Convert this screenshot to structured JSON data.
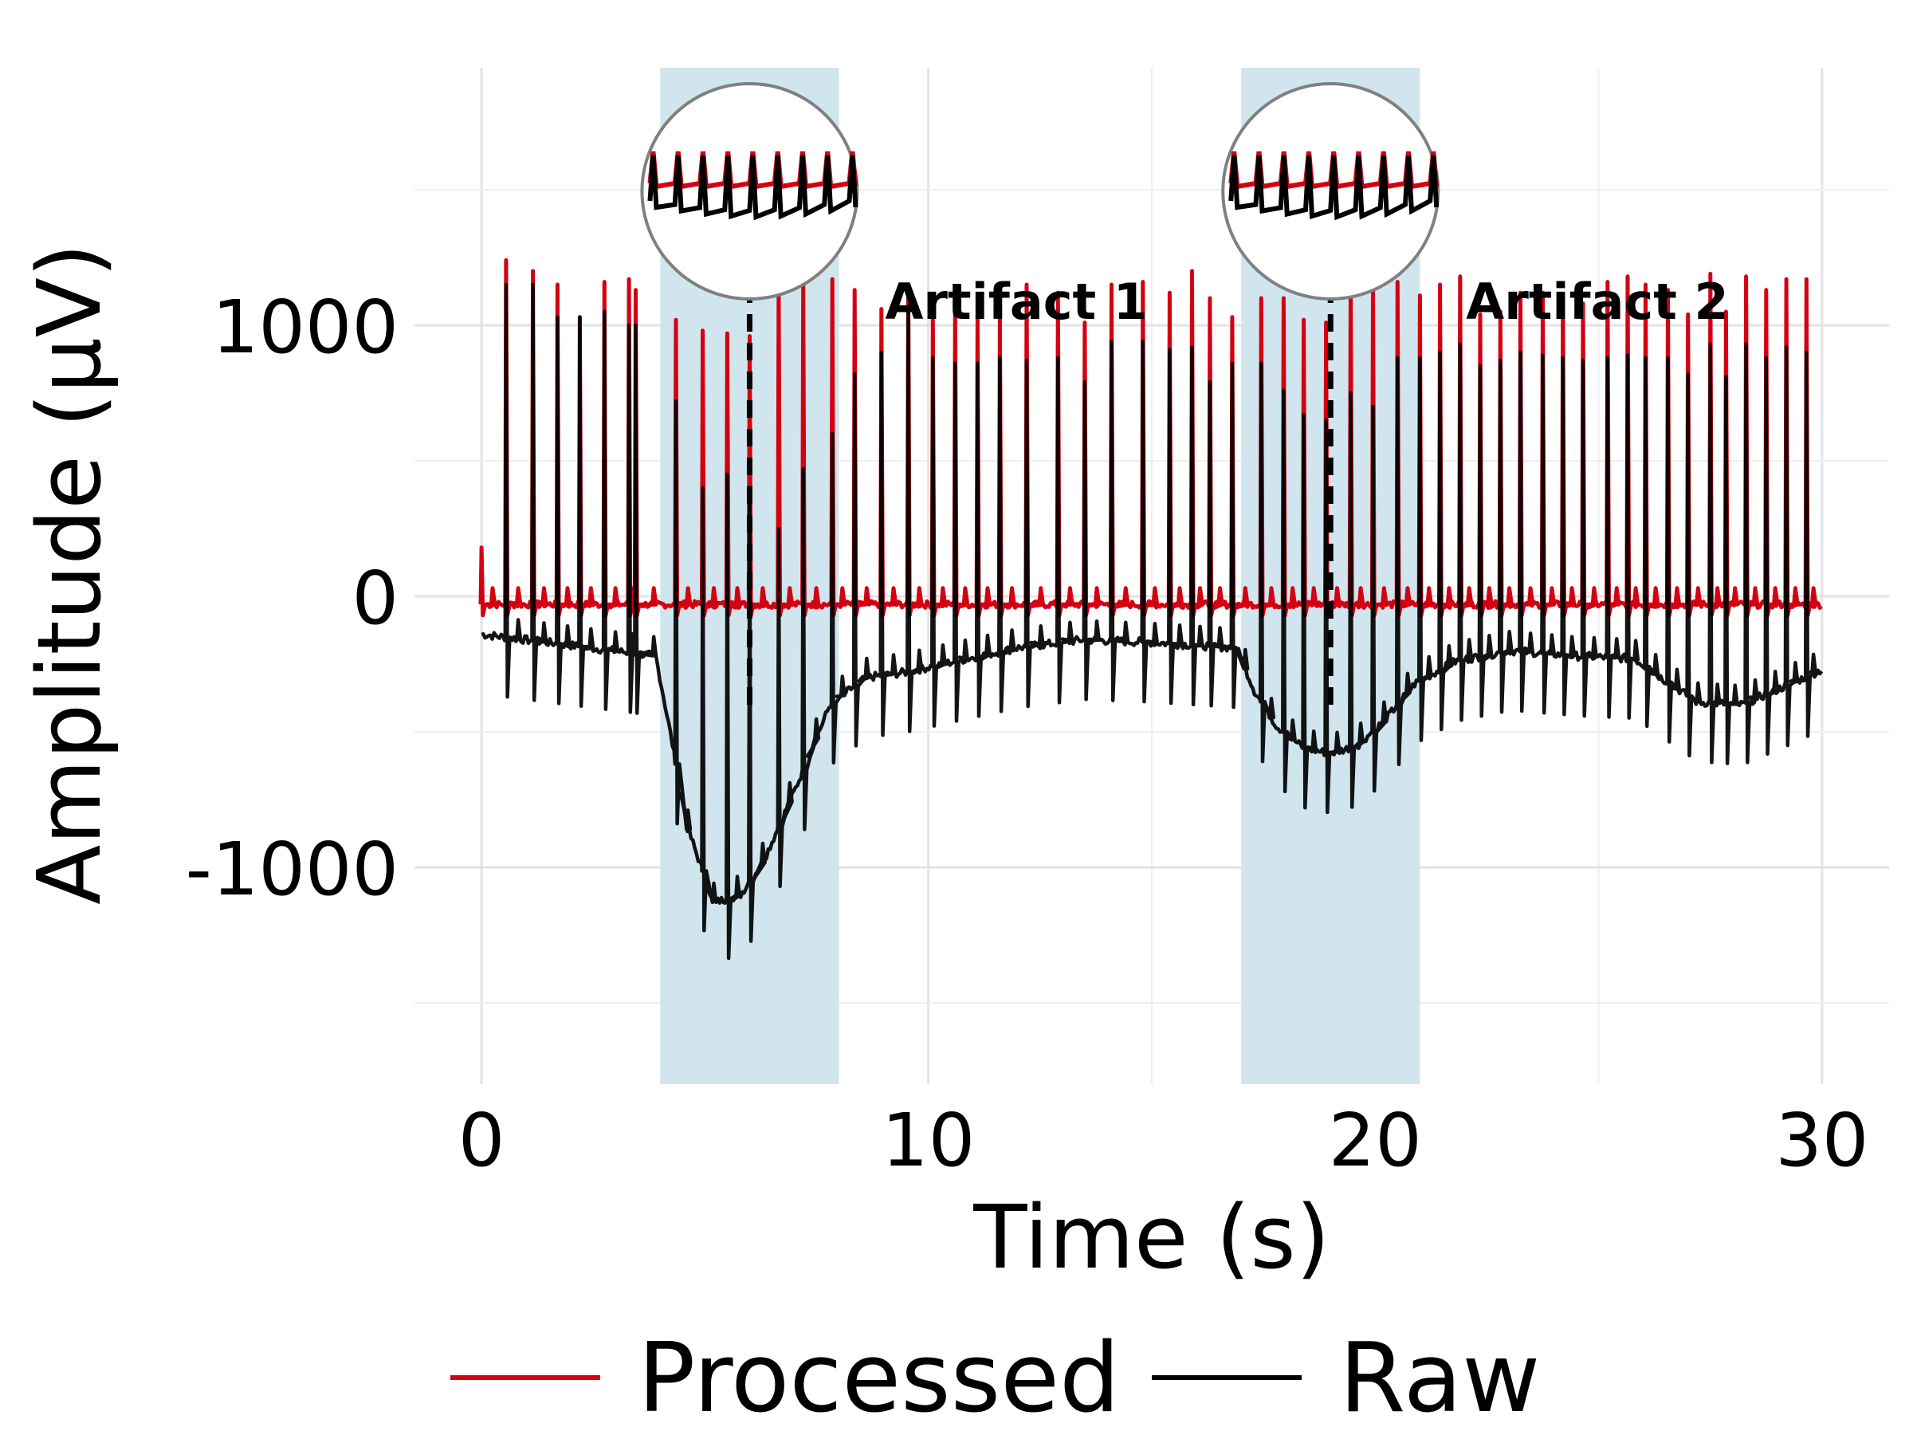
{
  "chart_data": {
    "type": "line",
    "title": "",
    "xlabel": "Time (s)",
    "ylabel": "Amplitude (μV)",
    "xlim": [
      -1.5,
      31.5
    ],
    "ylim": [
      -1800,
      1950
    ],
    "x_ticks": [
      0,
      10,
      20,
      30
    ],
    "x_tick_labels": [
      "0",
      "10",
      "20",
      "30"
    ],
    "y_ticks": [
      -1000,
      0,
      1000
    ],
    "y_tick_labels": [
      "-1000",
      "0",
      "1000"
    ],
    "grid": true,
    "legend_position": "bottom",
    "series": [
      {
        "name": "Processed",
        "color": "#d40012",
        "baseline": [
          [
            0,
            -30
          ],
          [
            30,
            -30
          ]
        ],
        "spike_peaks": [
          [
            0.0,
            180
          ],
          [
            0.55,
            1240
          ],
          [
            1.15,
            1200
          ],
          [
            1.7,
            1150
          ],
          [
            2.2,
            1030
          ],
          [
            2.75,
            1160
          ],
          [
            3.3,
            1170
          ],
          [
            3.45,
            1130
          ],
          [
            4.35,
            1020
          ],
          [
            4.95,
            980
          ],
          [
            5.5,
            970
          ],
          [
            6.0,
            960
          ],
          [
            6.65,
            1150
          ],
          [
            7.2,
            1160
          ],
          [
            7.85,
            1170
          ],
          [
            8.35,
            1130
          ],
          [
            8.95,
            1060
          ],
          [
            9.55,
            1150
          ],
          [
            10.1,
            1030
          ],
          [
            10.6,
            1090
          ],
          [
            11.1,
            1030
          ],
          [
            11.6,
            1050
          ],
          [
            12.2,
            1150
          ],
          [
            12.9,
            1120
          ],
          [
            13.5,
            1010
          ],
          [
            14.1,
            1150
          ],
          [
            14.8,
            1160
          ],
          [
            15.4,
            1120
          ],
          [
            15.9,
            1200
          ],
          [
            16.3,
            1100
          ],
          [
            16.8,
            1030
          ],
          [
            17.45,
            1100
          ],
          [
            17.95,
            1100
          ],
          [
            18.4,
            1020
          ],
          [
            18.9,
            1010
          ],
          [
            19.45,
            1170
          ],
          [
            19.95,
            1150
          ],
          [
            20.5,
            1160
          ],
          [
            21.0,
            1110
          ],
          [
            21.45,
            1150
          ],
          [
            21.9,
            1180
          ],
          [
            22.35,
            1040
          ],
          [
            22.8,
            1050
          ],
          [
            23.25,
            1120
          ],
          [
            23.75,
            1120
          ],
          [
            24.2,
            1110
          ],
          [
            24.65,
            1080
          ],
          [
            25.2,
            1160
          ],
          [
            25.65,
            1180
          ],
          [
            26.05,
            1150
          ],
          [
            26.55,
            1130
          ],
          [
            27.0,
            1040
          ],
          [
            27.5,
            1190
          ],
          [
            27.85,
            1050
          ],
          [
            28.3,
            1180
          ],
          [
            28.75,
            1130
          ],
          [
            29.2,
            1170
          ],
          [
            29.65,
            1170
          ]
        ]
      },
      {
        "name": "Raw",
        "color": "#000000",
        "baseline": [
          [
            0,
            -140
          ],
          [
            3.9,
            -220
          ],
          [
            4.2,
            -480
          ],
          [
            4.6,
            -850
          ],
          [
            5.2,
            -1130
          ],
          [
            5.8,
            -1100
          ],
          [
            6.3,
            -980
          ],
          [
            7.0,
            -720
          ],
          [
            7.8,
            -400
          ],
          [
            8.6,
            -300
          ],
          [
            9.5,
            -280
          ],
          [
            10.6,
            -240
          ],
          [
            12.0,
            -190
          ],
          [
            13.5,
            -160
          ],
          [
            15.0,
            -170
          ],
          [
            16.9,
            -190
          ],
          [
            17.3,
            -350
          ],
          [
            17.8,
            -480
          ],
          [
            18.4,
            -560
          ],
          [
            19.0,
            -580
          ],
          [
            19.6,
            -550
          ],
          [
            20.2,
            -460
          ],
          [
            20.9,
            -320
          ],
          [
            21.8,
            -240
          ],
          [
            23.0,
            -200
          ],
          [
            24.5,
            -220
          ],
          [
            25.8,
            -230
          ],
          [
            26.4,
            -300
          ],
          [
            27.2,
            -390
          ],
          [
            28.2,
            -400
          ],
          [
            29.2,
            -330
          ],
          [
            30.0,
            -270
          ]
        ],
        "spike_peaks": [
          [
            0.55,
            1150
          ],
          [
            1.15,
            1150
          ],
          [
            1.7,
            1030
          ],
          [
            2.2,
            1030
          ],
          [
            2.75,
            1050
          ],
          [
            3.3,
            1000
          ],
          [
            3.45,
            1000
          ],
          [
            4.35,
            720
          ],
          [
            4.95,
            400
          ],
          [
            5.5,
            450
          ],
          [
            6.0,
            400
          ],
          [
            6.65,
            250
          ],
          [
            7.2,
            470
          ],
          [
            7.85,
            600
          ],
          [
            8.35,
            820
          ],
          [
            8.95,
            900
          ],
          [
            9.55,
            1070
          ],
          [
            10.1,
            880
          ],
          [
            10.6,
            860
          ],
          [
            11.1,
            860
          ],
          [
            11.6,
            880
          ],
          [
            12.2,
            870
          ],
          [
            12.9,
            880
          ],
          [
            13.5,
            790
          ],
          [
            14.1,
            940
          ],
          [
            14.8,
            940
          ],
          [
            15.4,
            910
          ],
          [
            15.9,
            920
          ],
          [
            16.3,
            790
          ],
          [
            16.8,
            860
          ],
          [
            17.45,
            860
          ],
          [
            17.95,
            760
          ],
          [
            18.4,
            670
          ],
          [
            18.9,
            650
          ],
          [
            19.45,
            750
          ],
          [
            19.95,
            700
          ],
          [
            20.5,
            880
          ],
          [
            21.0,
            880
          ],
          [
            21.45,
            900
          ],
          [
            21.9,
            930
          ],
          [
            22.35,
            850
          ],
          [
            22.8,
            870
          ],
          [
            23.25,
            900
          ],
          [
            23.75,
            890
          ],
          [
            24.2,
            880
          ],
          [
            24.65,
            870
          ],
          [
            25.2,
            880
          ],
          [
            25.65,
            890
          ],
          [
            26.05,
            880
          ],
          [
            26.55,
            880
          ],
          [
            27.0,
            820
          ],
          [
            27.5,
            930
          ],
          [
            27.85,
            810
          ],
          [
            28.3,
            930
          ],
          [
            28.75,
            880
          ],
          [
            29.2,
            920
          ],
          [
            29.65,
            900
          ]
        ]
      }
    ],
    "shaded_regions": [
      {
        "label": "Artifact 1",
        "x_range": [
          4.0,
          8.0
        ],
        "marker_x": 6.0,
        "color": "#cde4ec"
      },
      {
        "label": "Artifact 2",
        "x_range": [
          17.0,
          21.0
        ],
        "marker_x": 19.0,
        "color": "#cde4ec"
      }
    ],
    "annotations": [
      "Artifact 1",
      "Artifact 2"
    ]
  }
}
